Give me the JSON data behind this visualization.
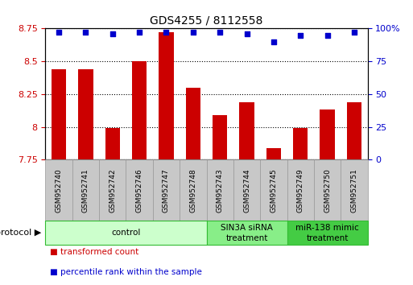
{
  "title": "GDS4255 / 8112558",
  "samples": [
    "GSM952740",
    "GSM952741",
    "GSM952742",
    "GSM952746",
    "GSM952747",
    "GSM952748",
    "GSM952743",
    "GSM952744",
    "GSM952745",
    "GSM952749",
    "GSM952750",
    "GSM952751"
  ],
  "transformed_counts": [
    8.44,
    8.44,
    7.99,
    8.5,
    8.72,
    8.3,
    8.09,
    8.19,
    7.84,
    7.99,
    8.13,
    8.19
  ],
  "percentile_ranks": [
    97,
    97,
    96,
    97,
    97,
    97,
    97,
    96,
    90,
    95,
    95,
    97
  ],
  "ylim_left": [
    7.75,
    8.75
  ],
  "ylim_right": [
    0,
    100
  ],
  "yticks_left": [
    7.75,
    8.0,
    8.25,
    8.5,
    8.75
  ],
  "yticks_right": [
    0,
    25,
    50,
    75,
    100
  ],
  "bar_color": "#cc0000",
  "dot_color": "#0000cc",
  "groups": [
    {
      "label": "control",
      "start": 0,
      "end": 6,
      "color": "#ccffcc",
      "border": "#33bb33"
    },
    {
      "label": "SIN3A siRNA\ntreatment",
      "start": 6,
      "end": 9,
      "color": "#88ee88",
      "border": "#33bb33"
    },
    {
      "label": "miR-138 mimic\ntreatment",
      "start": 9,
      "end": 12,
      "color": "#44cc44",
      "border": "#33bb33"
    }
  ],
  "protocol_label": "protocol",
  "legend_items": [
    {
      "color": "#cc0000",
      "label": "transformed count"
    },
    {
      "color": "#0000cc",
      "label": "percentile rank within the sample"
    }
  ],
  "bg_color": "#ffffff",
  "tick_label_color_left": "#cc0000",
  "tick_label_color_right": "#0000cc",
  "bar_width": 0.55,
  "sample_box_color": "#c8c8c8",
  "sample_box_border": "#999999"
}
